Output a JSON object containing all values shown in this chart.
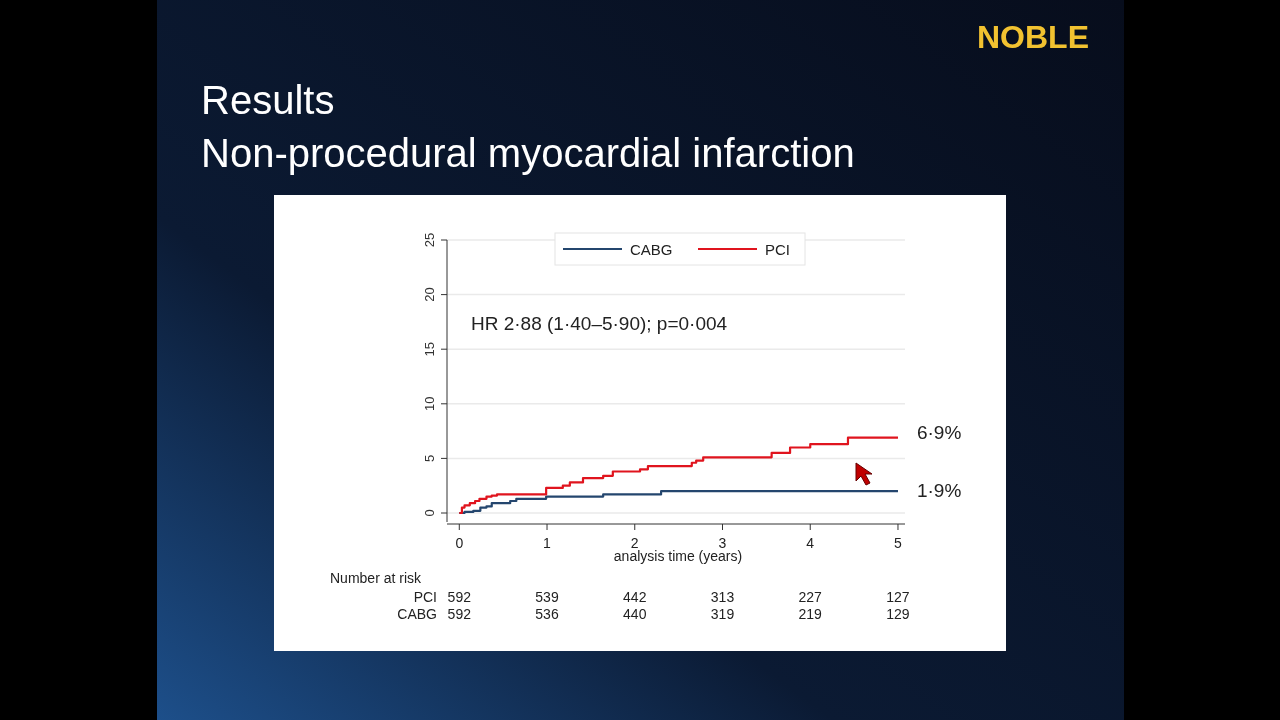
{
  "chart_data": {
    "type": "step",
    "title": "Results",
    "subtitle": "Non-procedural myocardial infarction",
    "xlabel": "analysis time (years)",
    "xlim": [
      -0.14,
      5.08
    ],
    "xticks": [
      0,
      1,
      2,
      3,
      4,
      5
    ],
    "ylim": [
      0,
      25
    ],
    "yticks": [
      0,
      5,
      10,
      15,
      20,
      25
    ],
    "grid": "y",
    "legend": "top",
    "marker": "none",
    "line_style": "solid",
    "series": [
      {
        "name": "CABG",
        "color": "#24466e",
        "x": [
          0,
          0.06,
          0.16,
          0.24,
          0.31,
          0.37,
          0.58,
          0.65,
          0.99,
          1.64,
          2.3,
          5
        ],
        "values": [
          0,
          0.1,
          0.2,
          0.5,
          0.6,
          0.9,
          1.1,
          1.3,
          1.5,
          1.7,
          2.0,
          2.0
        ]
      },
      {
        "name": "PCI",
        "color": "#e0141e",
        "x": [
          0,
          0.03,
          0.06,
          0.12,
          0.18,
          0.23,
          0.31,
          0.37,
          0.43,
          0.99,
          1.18,
          1.26,
          1.41,
          1.64,
          1.75,
          2.06,
          2.15,
          2.65,
          2.7,
          2.78,
          3.56,
          3.77,
          4.0,
          4.43,
          5
        ],
        "values": [
          0,
          0.5,
          0.7,
          0.9,
          1.1,
          1.3,
          1.5,
          1.6,
          1.7,
          2.3,
          2.5,
          2.8,
          3.2,
          3.4,
          3.8,
          4.0,
          4.3,
          4.6,
          4.8,
          5.1,
          5.5,
          6.0,
          6.3,
          6.9,
          6.9
        ]
      }
    ],
    "annotations": [
      "NOBLE",
      "HR 2·88 (1·40–5·90); p=0·004",
      {
        "text": "6·9%",
        "x": 5,
        "y": 6.9
      },
      {
        "text": "1·9%",
        "x": 5,
        "y": 2.0
      },
      "Number at risk",
      "PCI 592 539 442 313 227 127",
      "CABG 592 536 440 319 219 129"
    ]
  }
}
